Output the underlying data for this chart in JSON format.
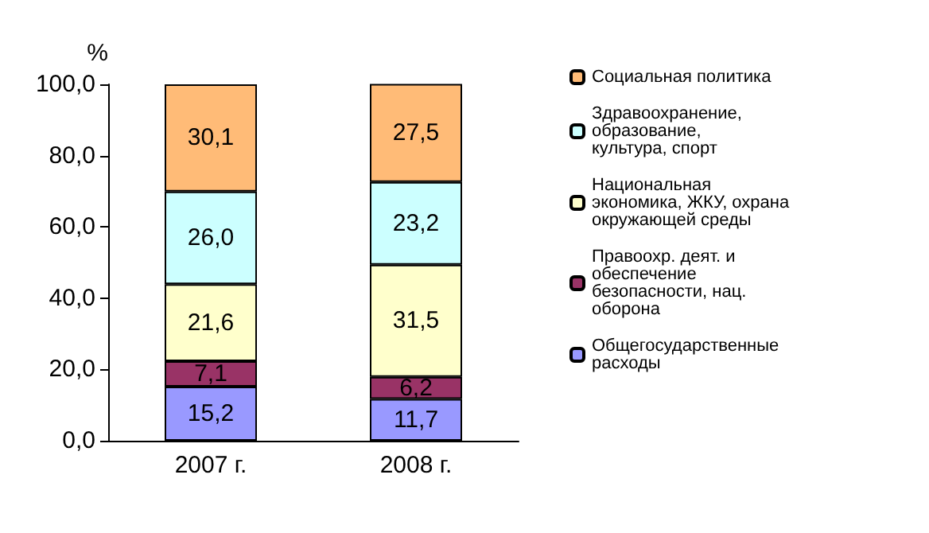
{
  "chart_data": {
    "type": "bar",
    "stacked": true,
    "ylabel": "%",
    "categories": [
      "2007 г.",
      "2008 г."
    ],
    "series": [
      {
        "name": "Общегосударственные расходы",
        "color": "#9999ff",
        "values": [
          15.2,
          11.7
        ],
        "value_labels": [
          "15,2",
          "11,7"
        ]
      },
      {
        "name": "Правоохр. деят. и обеспечение безопасности, нац. оборона",
        "color": "#993366",
        "values": [
          7.1,
          6.2
        ],
        "value_labels": [
          "7,1",
          "6,2"
        ]
      },
      {
        "name": "Национальная экономика, ЖКУ, охрана окружающей среды",
        "color": "#ffffcc",
        "values": [
          21.6,
          31.5
        ],
        "value_labels": [
          "21,6",
          "31,5"
        ]
      },
      {
        "name": "Здравоохранение, образование, культура, спорт",
        "color": "#ccffff",
        "values": [
          26.0,
          23.2
        ],
        "value_labels": [
          "26,0",
          "23,2"
        ]
      },
      {
        "name": "Социальная политика",
        "color": "#ffbb77",
        "values": [
          30.1,
          27.5
        ],
        "value_labels": [
          "30,1",
          "27,5"
        ]
      }
    ],
    "ylim": [
      0,
      100
    ],
    "yticks": [
      {
        "value": 0,
        "label": "0,0"
      },
      {
        "value": 20,
        "label": "20,0"
      },
      {
        "value": 40,
        "label": "40,0"
      },
      {
        "value": 60,
        "label": "60,0"
      },
      {
        "value": 80,
        "label": "80,0"
      },
      {
        "value": 100,
        "label": "100,0"
      }
    ],
    "grid": false,
    "legend": "right"
  }
}
